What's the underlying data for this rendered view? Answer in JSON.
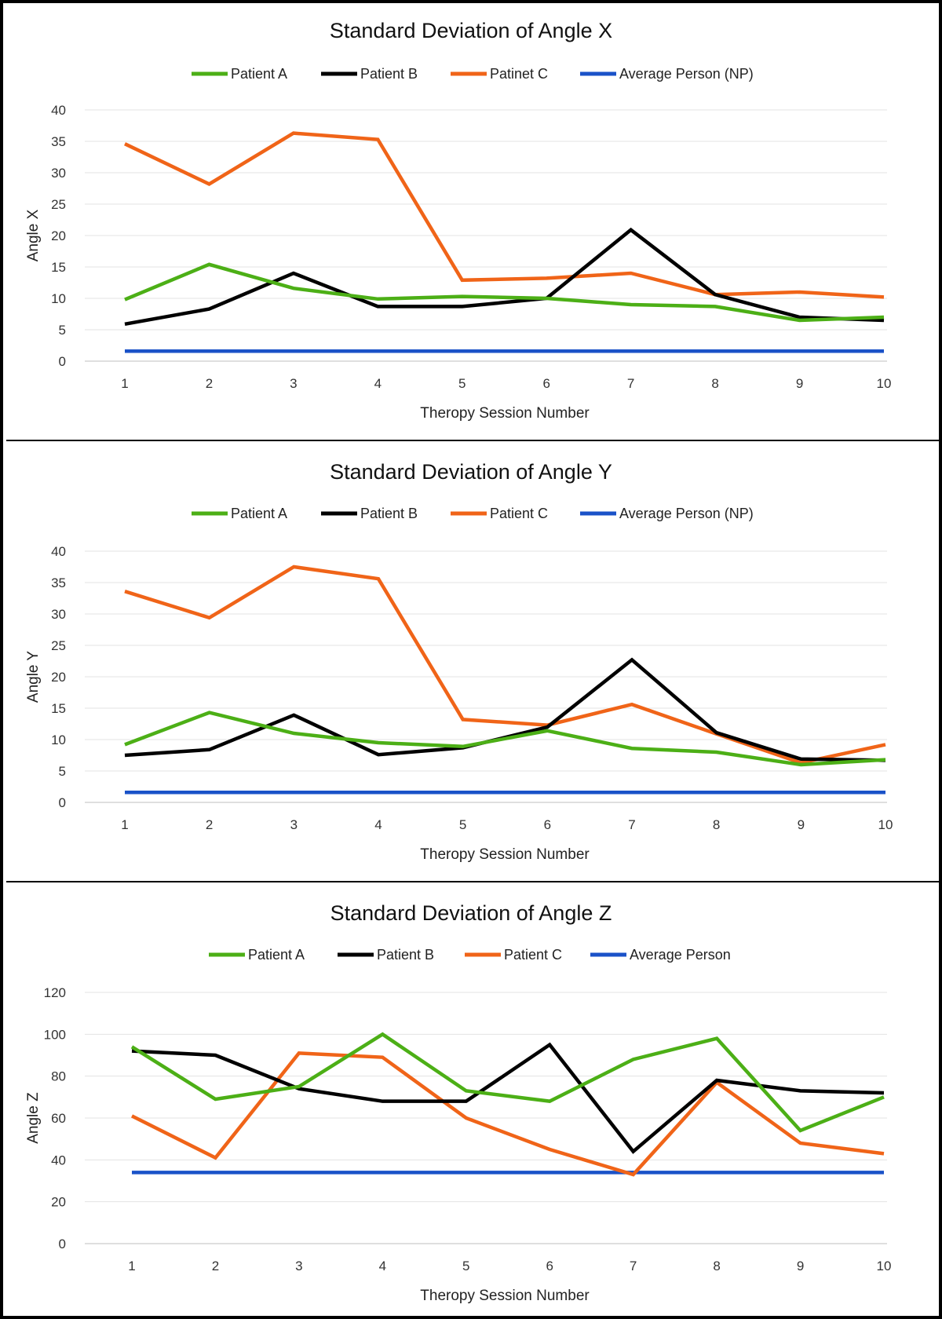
{
  "chart_data": [
    {
      "type": "line",
      "title": "Standard Deviation of Angle X",
      "xlabel": "Theropy Session Number",
      "ylabel": "Angle X",
      "x": [
        1,
        2,
        3,
        4,
        5,
        6,
        7,
        8,
        9,
        10
      ],
      "ylim": [
        0,
        40
      ],
      "yticks": [
        0,
        5,
        10,
        15,
        20,
        25,
        30,
        35,
        40
      ],
      "grid": true,
      "legend_position": "top",
      "series": [
        {
          "name": "Patient A",
          "color": "#4caf16",
          "values": [
            9.8,
            15.4,
            11.6,
            9.9,
            10.3,
            10.0,
            9.0,
            8.7,
            6.5,
            7.0
          ]
        },
        {
          "name": "Patient B",
          "color": "#000000",
          "values": [
            5.9,
            8.3,
            14.0,
            8.7,
            8.7,
            10.0,
            20.9,
            10.6,
            7.0,
            6.5
          ]
        },
        {
          "name": "Patinet C",
          "color": "#f06418",
          "values": [
            34.6,
            28.2,
            36.3,
            35.3,
            12.9,
            13.2,
            14.0,
            10.6,
            11.0,
            10.2
          ]
        },
        {
          "name": "Average Person (NP)",
          "color": "#1a52c8",
          "values": [
            1.6,
            1.6,
            1.6,
            1.6,
            1.6,
            1.6,
            1.6,
            1.6,
            1.6,
            1.6
          ]
        }
      ]
    },
    {
      "type": "line",
      "title": "Standard Deviation of Angle Y",
      "xlabel": "Theropy Session Number",
      "ylabel": "Angle Y",
      "x": [
        1,
        2,
        3,
        4,
        5,
        6,
        7,
        8,
        9,
        10
      ],
      "ylim": [
        0,
        40
      ],
      "yticks": [
        0,
        5,
        10,
        15,
        20,
        25,
        30,
        35,
        40
      ],
      "grid": true,
      "legend_position": "top",
      "series": [
        {
          "name": "Patient A",
          "color": "#4caf16",
          "values": [
            9.2,
            14.3,
            11.0,
            9.5,
            8.9,
            11.4,
            8.6,
            8.0,
            6.0,
            6.8
          ]
        },
        {
          "name": "Patient B",
          "color": "#000000",
          "values": [
            7.5,
            8.4,
            13.9,
            7.6,
            8.7,
            12.0,
            22.7,
            11.1,
            6.9,
            6.7
          ]
        },
        {
          "name": "Patient C",
          "color": "#f06418",
          "values": [
            33.6,
            29.4,
            37.5,
            35.6,
            13.2,
            12.3,
            15.6,
            10.9,
            6.3,
            9.2
          ]
        },
        {
          "name": "Average Person (NP)",
          "color": "#1a52c8",
          "values": [
            1.6,
            1.6,
            1.6,
            1.6,
            1.6,
            1.6,
            1.6,
            1.6,
            1.6,
            1.6
          ]
        }
      ]
    },
    {
      "type": "line",
      "title": "Standard Deviation of Angle Z",
      "xlabel": "Theropy Session Number",
      "ylabel": "Angle Z",
      "x": [
        1,
        2,
        3,
        4,
        5,
        6,
        7,
        8,
        9,
        10
      ],
      "ylim": [
        0,
        120
      ],
      "yticks": [
        0,
        20,
        40,
        60,
        80,
        100,
        120
      ],
      "grid": true,
      "legend_position": "top",
      "series": [
        {
          "name": "Patient A",
          "color": "#4caf16",
          "values": [
            94,
            69,
            75,
            100,
            73,
            68,
            88,
            98,
            54,
            70
          ]
        },
        {
          "name": "Patient B",
          "color": "#000000",
          "values": [
            92,
            90,
            74,
            68,
            68,
            95,
            44,
            78,
            73,
            72
          ]
        },
        {
          "name": "Patient C",
          "color": "#f06418",
          "values": [
            61,
            41,
            91,
            89,
            60,
            45,
            33,
            77,
            48,
            43
          ]
        },
        {
          "name": "Average Person",
          "color": "#1a52c8",
          "values": [
            34,
            34,
            34,
            34,
            34,
            34,
            34,
            34,
            34,
            34
          ]
        }
      ]
    }
  ]
}
